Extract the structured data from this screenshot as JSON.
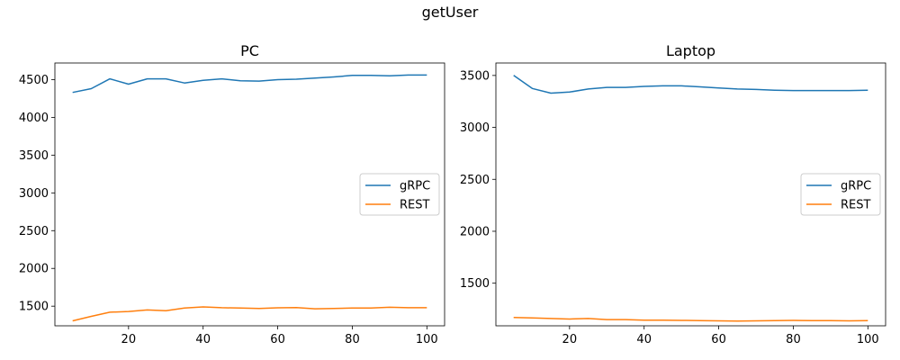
{
  "suptitle": "getUser",
  "chart_data": [
    {
      "type": "line",
      "title": "PC",
      "xlabel": "",
      "ylabel": "",
      "xlim": [
        0.25,
        104.75
      ],
      "ylim": [
        1240,
        4720
      ],
      "xticks": [
        20,
        40,
        60,
        80,
        100
      ],
      "yticks": [
        1500,
        2000,
        2500,
        3000,
        3500,
        4000,
        4500
      ],
      "legend_position": "center-right",
      "x": [
        5,
        10,
        15,
        20,
        25,
        30,
        35,
        40,
        45,
        50,
        55,
        60,
        65,
        70,
        75,
        80,
        85,
        90,
        95,
        100
      ],
      "series": [
        {
          "name": "gRPC",
          "color": "#1f77b4",
          "values": [
            4330,
            4380,
            4510,
            4440,
            4510,
            4510,
            4455,
            4490,
            4510,
            4485,
            4480,
            4500,
            4505,
            4520,
            4535,
            4555,
            4555,
            4550,
            4560,
            4560
          ]
        },
        {
          "name": "REST",
          "color": "#ff7f0e",
          "values": [
            1305,
            1365,
            1420,
            1430,
            1450,
            1440,
            1475,
            1490,
            1480,
            1475,
            1470,
            1478,
            1482,
            1465,
            1470,
            1475,
            1475,
            1485,
            1480,
            1480
          ]
        }
      ]
    },
    {
      "type": "line",
      "title": "Laptop",
      "xlabel": "",
      "ylabel": "",
      "xlim": [
        0.25,
        104.75
      ],
      "ylim": [
        1090,
        3620
      ],
      "xticks": [
        20,
        40,
        60,
        80,
        100
      ],
      "yticks": [
        1500,
        2000,
        2500,
        3000,
        3500
      ],
      "legend_position": "center-right",
      "x": [
        5,
        10,
        15,
        20,
        25,
        30,
        35,
        40,
        45,
        50,
        55,
        60,
        65,
        70,
        75,
        80,
        85,
        90,
        95,
        100
      ],
      "series": [
        {
          "name": "gRPC",
          "color": "#1f77b4",
          "values": [
            3500,
            3375,
            3330,
            3340,
            3370,
            3385,
            3385,
            3395,
            3400,
            3400,
            3390,
            3380,
            3370,
            3365,
            3358,
            3355,
            3355,
            3355,
            3355,
            3358
          ]
        },
        {
          "name": "REST",
          "color": "#ff7f0e",
          "values": [
            1170,
            1165,
            1160,
            1155,
            1160,
            1150,
            1150,
            1145,
            1145,
            1142,
            1140,
            1138,
            1135,
            1138,
            1140,
            1142,
            1140,
            1140,
            1138,
            1140
          ]
        }
      ]
    }
  ]
}
